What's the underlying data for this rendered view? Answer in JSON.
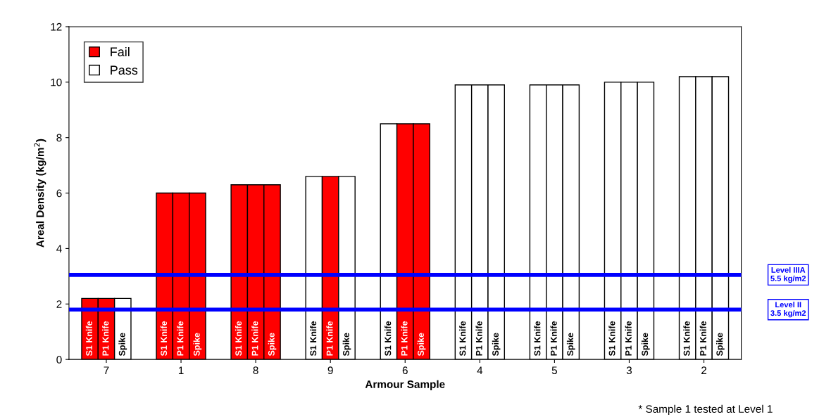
{
  "chart_data": {
    "type": "bar",
    "xlabel": "Armour Sample",
    "ylabel": "Areal Density (kg/m$^{2}$)",
    "categories": [
      "7",
      "1",
      "8",
      "9",
      "6",
      "4",
      "5",
      "3",
      "2"
    ],
    "series": [
      {
        "name": "Fail",
        "color": "#ff0000",
        "values": [
          2.2,
          6.0,
          6.3,
          null,
          null,
          null,
          null,
          null,
          null
        ],
        "value_labels": [
          "S1 Knife",
          "S1 Knife",
          "S1 Knife",
          null,
          null,
          null,
          null,
          null,
          null
        ]
      },
      {
        "name": "Pass",
        "color": "#ffffff",
        "values": [
          null,
          null,
          null,
          6.6,
          8.5,
          9.9,
          9.9,
          10.0,
          10.2
        ],
        "value_labels": [
          null,
          null,
          null,
          "S1 Knife",
          "S1 Knife",
          "S1 Knife",
          "S1 Knife",
          "S1 Knife",
          "S1 Knife"
        ]
      },
      {
        "color": "#ff0000",
        "values": [
          2.2,
          6.0,
          6.3,
          6.6,
          8.5,
          null,
          null,
          null,
          null
        ],
        "value_labels": [
          "P1 Knife",
          "P1 Knife",
          "P1 Knife",
          "P1 Knife",
          "P1 Knife",
          null,
          null,
          null,
          null
        ]
      },
      {
        "color": "#ffffff",
        "values": [
          null,
          null,
          null,
          null,
          null,
          9.9,
          9.9,
          10.0,
          10.2
        ],
        "value_labels": [
          null,
          null,
          null,
          null,
          null,
          "P1 Knife",
          "P1 Knife",
          "P1 Knife",
          "P1 Knife"
        ]
      },
      {
        "color": "#ff0000",
        "values": [
          null,
          6.0,
          6.3,
          null,
          8.5,
          null,
          null,
          null,
          null
        ],
        "value_labels": [
          null,
          "Spike",
          "Spike",
          null,
          "Spike",
          null,
          null,
          null,
          null
        ]
      },
      {
        "color": "#ffffff",
        "values": [
          2.2,
          null,
          null,
          6.6,
          null,
          9.9,
          9.9,
          10.0,
          10.2
        ],
        "value_labels": [
          "Spike",
          null,
          null,
          "Spike",
          null,
          "Spike",
          "Spike",
          "Spike",
          "Spike"
        ]
      }
    ],
    "ylim": [
      0,
      12
    ],
    "yticks": [
      0,
      2,
      4,
      6,
      8,
      10,
      12
    ],
    "grid": false,
    "legend": "top left",
    "ref_lines": [
      {
        "axis": "y",
        "value": 3.05,
        "label": "Level IIIA\n5.5 kg/m2",
        "color": "#0000ff"
      },
      {
        "axis": "y",
        "value": 1.8,
        "label": "Level II\n3.5 kg/m2",
        "color": "#0000ff"
      }
    ],
    "annotations": [
      "* Sample 1 tested at Level 1"
    ]
  }
}
